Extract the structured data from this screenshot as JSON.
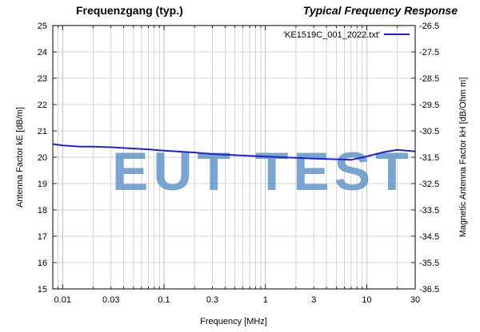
{
  "titles": {
    "left": "Frequenzgang (typ.)",
    "right": "Typical Frequency Response"
  },
  "watermark": "EUT TEST",
  "colors": {
    "series": "#1f1fd6",
    "grid": "#c8c8c8",
    "watermark": "#5b93c7"
  },
  "chart_data": {
    "type": "line",
    "xlabel": "Frequency [MHz]",
    "ylabel": "Antenna Factor kE [dB/m]",
    "y2label": "Magnetic Antenna Factor kH [dB/Ohm m]",
    "x_scale": "log",
    "xlim": [
      0.008,
      30
    ],
    "ylim": [
      15,
      25
    ],
    "y2lim": [
      -36.5,
      -26.5
    ],
    "x_ticks": [
      0.01,
      0.03,
      0.1,
      0.3,
      1,
      3,
      10,
      30
    ],
    "x_tick_labels": [
      "0.01",
      "0.03",
      "0.1",
      "0.3",
      "1",
      "3",
      "10",
      "30"
    ],
    "y_ticks": [
      15,
      16,
      17,
      18,
      19,
      20,
      21,
      22,
      23,
      24,
      25
    ],
    "y2_ticks": [
      -36.5,
      -35.5,
      -34.5,
      -33.5,
      -32.5,
      -31.5,
      -30.5,
      -29.5,
      -28.5,
      -27.5,
      -26.5
    ],
    "grid": true,
    "legend_position": "top-right",
    "series": [
      {
        "name": "'KE1519C_001_2022.txt'",
        "x": [
          0.008,
          0.01,
          0.015,
          0.02,
          0.03,
          0.05,
          0.07,
          0.1,
          0.2,
          0.3,
          0.5,
          1,
          2,
          3,
          5,
          7,
          10,
          15,
          20,
          30
        ],
        "y": [
          20.5,
          20.45,
          20.4,
          20.4,
          20.38,
          20.33,
          20.3,
          20.25,
          20.18,
          20.12,
          20.08,
          20.02,
          19.98,
          19.95,
          19.92,
          19.9,
          20.03,
          20.2,
          20.28,
          20.22
        ]
      }
    ]
  }
}
